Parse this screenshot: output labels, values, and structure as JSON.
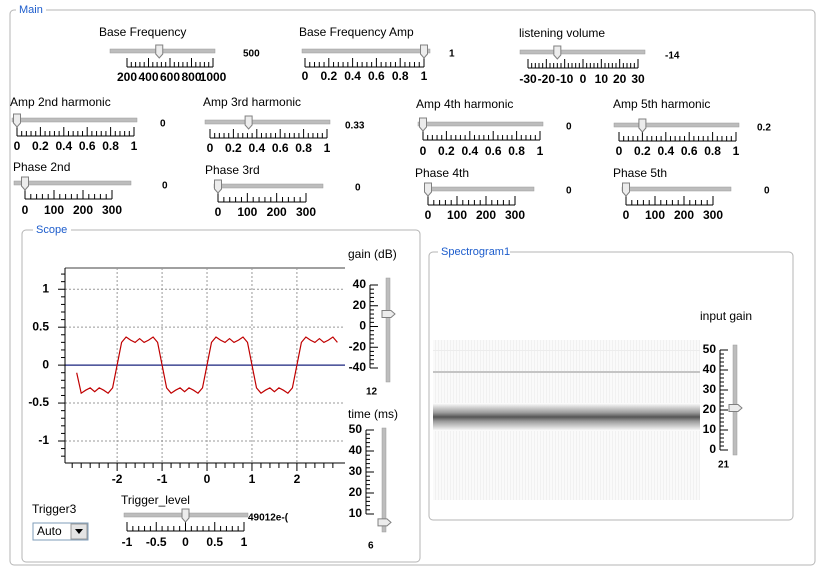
{
  "main": {
    "title": "Main",
    "sliders": [
      {
        "label": "Base Frequency",
        "value": 500,
        "ticks": [
          200,
          400,
          600,
          800,
          1000
        ]
      },
      {
        "label": "Base Frequency Amp",
        "value": 1,
        "ticks": [
          0,
          0.2,
          0.4,
          0.6,
          0.8,
          1
        ]
      },
      {
        "label": "listening volume",
        "value": -14,
        "ticks": [
          -30,
          -20,
          -10,
          0,
          10,
          20,
          30
        ]
      },
      {
        "label": "Amp 2nd harmonic",
        "value": 0,
        "ticks": [
          0,
          0.2,
          0.4,
          0.6,
          0.8,
          1
        ]
      },
      {
        "label": "Amp 3rd harmonic",
        "value": 0.33,
        "ticks": [
          0,
          0.2,
          0.4,
          0.6,
          0.8,
          1
        ]
      },
      {
        "label": "Amp 4th harmonic",
        "value": 0,
        "ticks": [
          0,
          0.2,
          0.4,
          0.6,
          0.8,
          1
        ]
      },
      {
        "label": "Amp 5th harmonic",
        "value": 0.2,
        "ticks": [
          0,
          0.2,
          0.4,
          0.6,
          0.8,
          1
        ]
      },
      {
        "label": "Phase 2nd",
        "value": 0,
        "ticks": [
          0,
          100,
          200,
          300
        ]
      },
      {
        "label": "Phase 3rd",
        "value": 0,
        "ticks": [
          0,
          100,
          200,
          300
        ]
      },
      {
        "label": "Phase 4th",
        "value": 0,
        "ticks": [
          0,
          100,
          200,
          300
        ]
      },
      {
        "label": "Phase 5th",
        "value": 0,
        "ticks": [
          0,
          100,
          200,
          300
        ]
      }
    ]
  },
  "scope": {
    "title": "Scope",
    "plot": {
      "type": "line",
      "color": "#c00000",
      "x": [
        -2.9,
        -2.8,
        -2.7,
        -2.6,
        -2.5,
        -2.4,
        -2.3,
        -2.2,
        -2.1,
        -2.0,
        -1.9,
        -1.8,
        -1.7,
        -1.6,
        -1.5,
        -1.4,
        -1.3,
        -1.2,
        -1.1,
        -1.0,
        -0.9,
        -0.8,
        -0.7,
        -0.6,
        -0.5,
        -0.4,
        -0.3,
        -0.2,
        -0.1,
        0,
        0.1,
        0.2,
        0.3,
        0.4,
        0.5,
        0.6,
        0.7,
        0.8,
        0.9,
        1.0,
        1.1,
        1.2,
        1.3,
        1.4,
        1.5,
        1.6,
        1.7,
        1.8,
        1.9,
        2.0,
        2.1,
        2.2,
        2.3,
        2.4,
        2.5,
        2.6,
        2.7,
        2.8,
        2.9
      ],
      "values": [
        -0.1,
        -0.37,
        -0.33,
        -0.3,
        -0.35,
        -0.3,
        -0.33,
        -0.37,
        -0.3,
        0,
        0.3,
        0.37,
        0.33,
        0.3,
        0.35,
        0.3,
        0.33,
        0.37,
        0.3,
        0,
        -0.3,
        -0.37,
        -0.33,
        -0.3,
        -0.35,
        -0.3,
        -0.33,
        -0.37,
        -0.3,
        0,
        0.3,
        0.37,
        0.33,
        0.3,
        0.35,
        0.3,
        0.33,
        0.37,
        0.3,
        0,
        -0.3,
        -0.37,
        -0.33,
        -0.3,
        -0.35,
        -0.3,
        -0.33,
        -0.37,
        -0.3,
        0,
        0.3,
        0.37,
        0.33,
        0.3,
        0.35,
        0.3,
        0.33,
        0.37,
        0.3
      ],
      "xlim": [
        -3.16,
        3.07
      ],
      "ylim": [
        -1.29,
        1.28
      ],
      "xticks": [
        -2,
        -1,
        0,
        1,
        2
      ],
      "yticks": [
        -1,
        -0.5,
        0,
        0.5,
        1
      ],
      "grid": true
    },
    "gain": {
      "label": "gain (dB)",
      "value": 12,
      "ticks": [
        40,
        20,
        0,
        -20,
        -40
      ]
    },
    "time": {
      "label": "time (ms)",
      "value": 6,
      "ticks": [
        50,
        40,
        30,
        20,
        10
      ]
    },
    "trigger": {
      "label": "Trigger3",
      "option": "Auto"
    },
    "trigger_level": {
      "label": "Trigger_level",
      "value": 0,
      "value_label": "49012e-(",
      "ticks": [
        -1,
        -0.5,
        0,
        0.5,
        1
      ]
    }
  },
  "spectrogram": {
    "title": "Spectrogram1",
    "input_gain": {
      "label": "input gain",
      "value": 21,
      "ticks": [
        50,
        40,
        30,
        20,
        10,
        0
      ]
    }
  }
}
